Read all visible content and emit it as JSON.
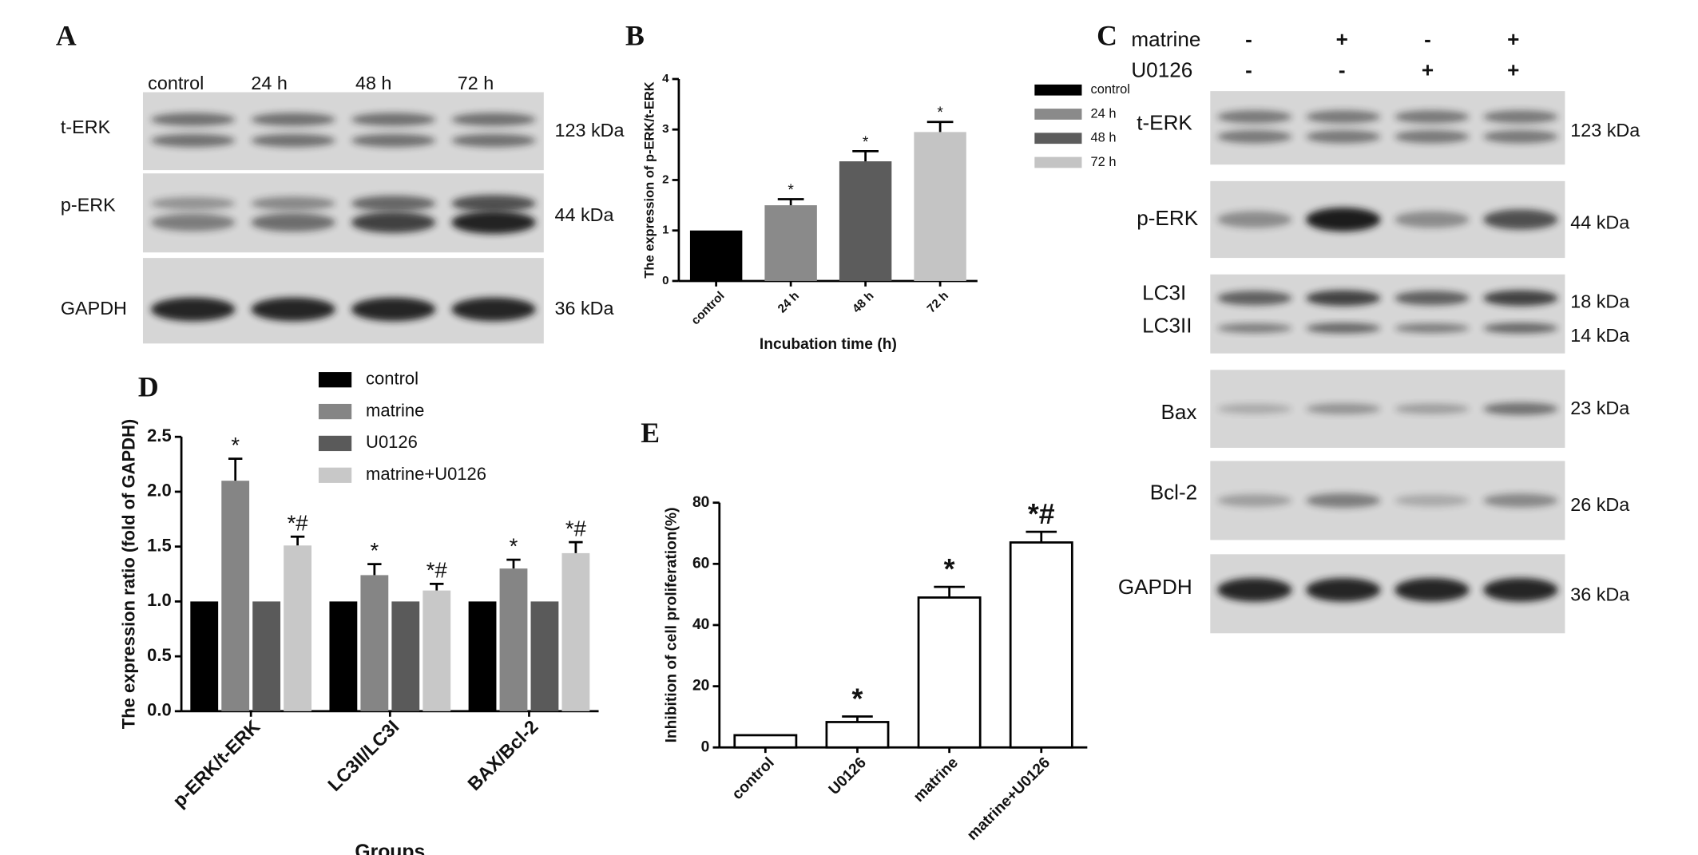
{
  "panels": [
    "A",
    "B",
    "C",
    "D",
    "E"
  ],
  "blot_A": {
    "lanes": [
      "control",
      "24 h",
      "48 h",
      "72 h"
    ],
    "proteins": [
      "t-ERK",
      "p-ERK",
      "GAPDH"
    ],
    "sizes": [
      "123 kDa",
      "44 kDa",
      "36 kDa"
    ]
  },
  "blot_C": {
    "treatments": [
      {
        "name": "matrine",
        "signs": [
          "-",
          "+",
          "-",
          "+"
        ]
      },
      {
        "name": "U0126",
        "signs": [
          "-",
          "-",
          "+",
          "+"
        ]
      }
    ],
    "proteins": [
      "t-ERK",
      "p-ERK",
      "LC3I",
      "LC3II",
      "Bax",
      "Bcl-2",
      "GAPDH"
    ],
    "sizes": [
      "123 kDa",
      "44 kDa",
      "18 kDa",
      "14 kDa",
      "23 kDa",
      "26 kDa",
      "36 kDa"
    ]
  },
  "chart_data": [
    {
      "type": "bar",
      "ylabel": "The expression of p-ERK/t-ERK",
      "xlabel": "Incubation time (h)",
      "categories": [
        "control",
        "24 h",
        "48 h",
        "72 h"
      ],
      "values": [
        1,
        1.5,
        2.37,
        2.95
      ],
      "errors": [
        0,
        0.12,
        0.2,
        0.2
      ],
      "value_labels": [
        null,
        "*",
        "*",
        "*"
      ],
      "colors": [
        "#000000",
        "#8a8a8a",
        "#5c5c5c",
        "#c4c4c4"
      ],
      "ylim": [
        0,
        4
      ],
      "yticks": [
        0,
        1,
        2,
        3,
        4
      ],
      "legend": "right"
    },
    {
      "type": "bar",
      "ylabel": "The expression  ratio (fold of GAPDH)",
      "xlabel": "Groups",
      "categories": [
        "p-ERK/t-ERK",
        "LC3II/LC3I",
        "BAX/Bcl-2"
      ],
      "series": [
        {
          "name": "control",
          "color": "#000000",
          "values": [
            1,
            1,
            1
          ]
        },
        {
          "name": "matrine",
          "color": "#858585",
          "values": [
            2.1,
            1.24,
            1.3
          ],
          "errors": [
            0.2,
            0.1,
            0.08
          ],
          "value_labels": [
            "*",
            "*",
            "*"
          ]
        },
        {
          "name": "U0126",
          "color": "#5a5a5a",
          "values": [
            1,
            1,
            1
          ]
        },
        {
          "name": "matrine+U0126",
          "color": "#c8c8c8",
          "values": [
            1.51,
            1.1,
            1.44
          ],
          "errors": [
            0.08,
            0.06,
            0.1
          ],
          "value_labels": [
            "*#",
            "*#",
            "*#"
          ]
        }
      ],
      "ylim": [
        0,
        2.5
      ],
      "yticks": [
        {
          "value": 0,
          "label": "0.0"
        },
        0.5,
        {
          "value": 1,
          "label": "1.0"
        },
        1.5,
        {
          "value": 2,
          "label": "2.0"
        },
        2.5
      ],
      "legend": "top"
    },
    {
      "type": "bar",
      "ylabel": "Inhibition of cell proliferation(%)",
      "categories": [
        "control",
        "U0126",
        "matrine",
        "matrine+U0126"
      ],
      "values": [
        4,
        8.3,
        49,
        67
      ],
      "errors": [
        0,
        1.8,
        3.5,
        3.5
      ],
      "value_labels": [
        null,
        "*",
        "*",
        "*#"
      ],
      "color": "#ffffff",
      "edgecolor": "#000000",
      "ylim": [
        0,
        80
      ],
      "yticks": [
        0,
        20,
        40,
        60,
        80
      ]
    }
  ]
}
